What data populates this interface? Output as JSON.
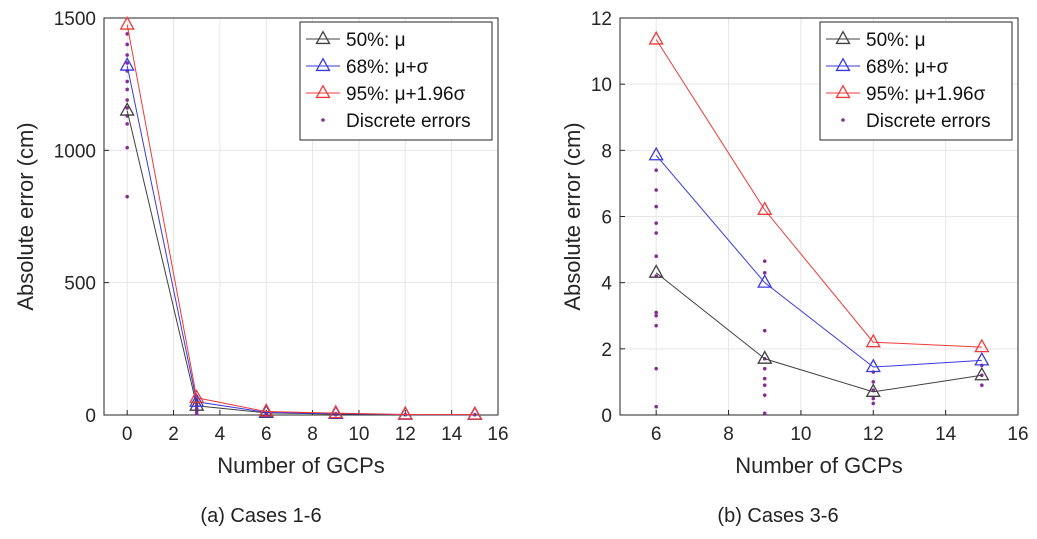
{
  "figure_captions": [
    "(a) Cases 1-6",
    "(b) Cases 3-6"
  ],
  "legend_labels": {
    "mu": "50%: μ",
    "mu_sigma": "68%: μ+σ",
    "mu_196sigma": "95%: μ+1.96σ",
    "discrete": "Discrete errors"
  },
  "colors": {
    "mu": "#404040",
    "mu_sigma": "#3a3ae0",
    "mu_196sigma": "#ee3a3a",
    "discrete": "#8a2a9a",
    "grid": "#e6e6e6",
    "axis": "#262626"
  },
  "chart_data": [
    {
      "type": "line",
      "caption": "(a) Cases 1-6",
      "xlabel": "Number of GCPs",
      "ylabel": "Absolute error (cm)",
      "xlim": [
        -1,
        16
      ],
      "ylim": [
        0,
        1500
      ],
      "xticks": [
        0,
        2,
        4,
        6,
        8,
        10,
        12,
        14,
        16
      ],
      "yticks": [
        0,
        500,
        1000,
        1500
      ],
      "grid": true,
      "legend_position": "top-right",
      "series": [
        {
          "key": "mu",
          "name": "50%: μ",
          "x": [
            0,
            3,
            6,
            9,
            12,
            15
          ],
          "y": [
            1150,
            35,
            8,
            4,
            1.5,
            1
          ]
        },
        {
          "key": "mu_sigma",
          "name": "68%: μ+σ",
          "x": [
            0,
            3,
            6,
            9,
            12,
            15
          ],
          "y": [
            1320,
            50,
            10,
            5,
            1.5,
            1.3
          ]
        },
        {
          "key": "mu_196sigma",
          "name": "95%: μ+1.96σ",
          "x": [
            0,
            3,
            6,
            9,
            12,
            15
          ],
          "y": [
            1475,
            65,
            13,
            7,
            2,
            1.8
          ]
        }
      ],
      "discrete_errors": {
        "name": "Discrete errors",
        "points": [
          [
            0,
            825
          ],
          [
            0,
            1010
          ],
          [
            0,
            1100
          ],
          [
            0,
            1130
          ],
          [
            0,
            1160
          ],
          [
            0,
            1190
          ],
          [
            0,
            1230
          ],
          [
            0,
            1260
          ],
          [
            0,
            1300
          ],
          [
            0,
            1330
          ],
          [
            0,
            1360
          ],
          [
            0,
            1400
          ],
          [
            0,
            1440
          ],
          [
            3,
            5
          ],
          [
            3,
            15
          ],
          [
            3,
            25
          ],
          [
            3,
            35
          ],
          [
            3,
            45
          ],
          [
            3,
            55
          ],
          [
            3,
            65
          ],
          [
            6,
            1
          ],
          [
            6,
            4
          ],
          [
            6,
            7
          ],
          [
            6,
            10
          ],
          [
            9,
            1
          ],
          [
            9,
            3
          ],
          [
            9,
            5
          ],
          [
            12,
            1
          ],
          [
            15,
            1
          ]
        ]
      }
    },
    {
      "type": "line",
      "caption": "(b) Cases 3-6",
      "xlabel": "Number of GCPs",
      "ylabel": "Absolute error (cm)",
      "xlim": [
        5,
        16
      ],
      "ylim": [
        0,
        12
      ],
      "xticks": [
        6,
        8,
        10,
        12,
        14,
        16
      ],
      "yticks": [
        0,
        2,
        4,
        6,
        8,
        10,
        12
      ],
      "grid": true,
      "legend_position": "top-right",
      "series": [
        {
          "key": "mu",
          "name": "50%: μ",
          "x": [
            6,
            9,
            12,
            15
          ],
          "y": [
            4.3,
            1.7,
            0.7,
            1.2
          ]
        },
        {
          "key": "mu_sigma",
          "name": "68%: μ+σ",
          "x": [
            6,
            9,
            12,
            15
          ],
          "y": [
            7.85,
            4.0,
            1.45,
            1.65
          ]
        },
        {
          "key": "mu_196sigma",
          "name": "95%: μ+1.96σ",
          "x": [
            6,
            9,
            12,
            15
          ],
          "y": [
            11.35,
            6.2,
            2.2,
            2.05
          ]
        }
      ],
      "discrete_errors": {
        "name": "Discrete errors",
        "points": [
          [
            6,
            0.25
          ],
          [
            6,
            1.4
          ],
          [
            6,
            2.7
          ],
          [
            6,
            3.0
          ],
          [
            6,
            3.1
          ],
          [
            6,
            4.2
          ],
          [
            6,
            4.8
          ],
          [
            6,
            5.5
          ],
          [
            6,
            5.8
          ],
          [
            6,
            6.3
          ],
          [
            6,
            6.8
          ],
          [
            6,
            7.4
          ],
          [
            9,
            0.05
          ],
          [
            9,
            0.6
          ],
          [
            9,
            0.9
          ],
          [
            9,
            1.1
          ],
          [
            9,
            1.4
          ],
          [
            9,
            1.7
          ],
          [
            9,
            2.55
          ],
          [
            9,
            4.3
          ],
          [
            9,
            4.65
          ],
          [
            12,
            0.35
          ],
          [
            12,
            0.5
          ],
          [
            12,
            0.75
          ],
          [
            12,
            1.0
          ],
          [
            12,
            1.3
          ],
          [
            15,
            0.9
          ],
          [
            15,
            1.2
          ],
          [
            15,
            1.5
          ]
        ]
      }
    }
  ]
}
